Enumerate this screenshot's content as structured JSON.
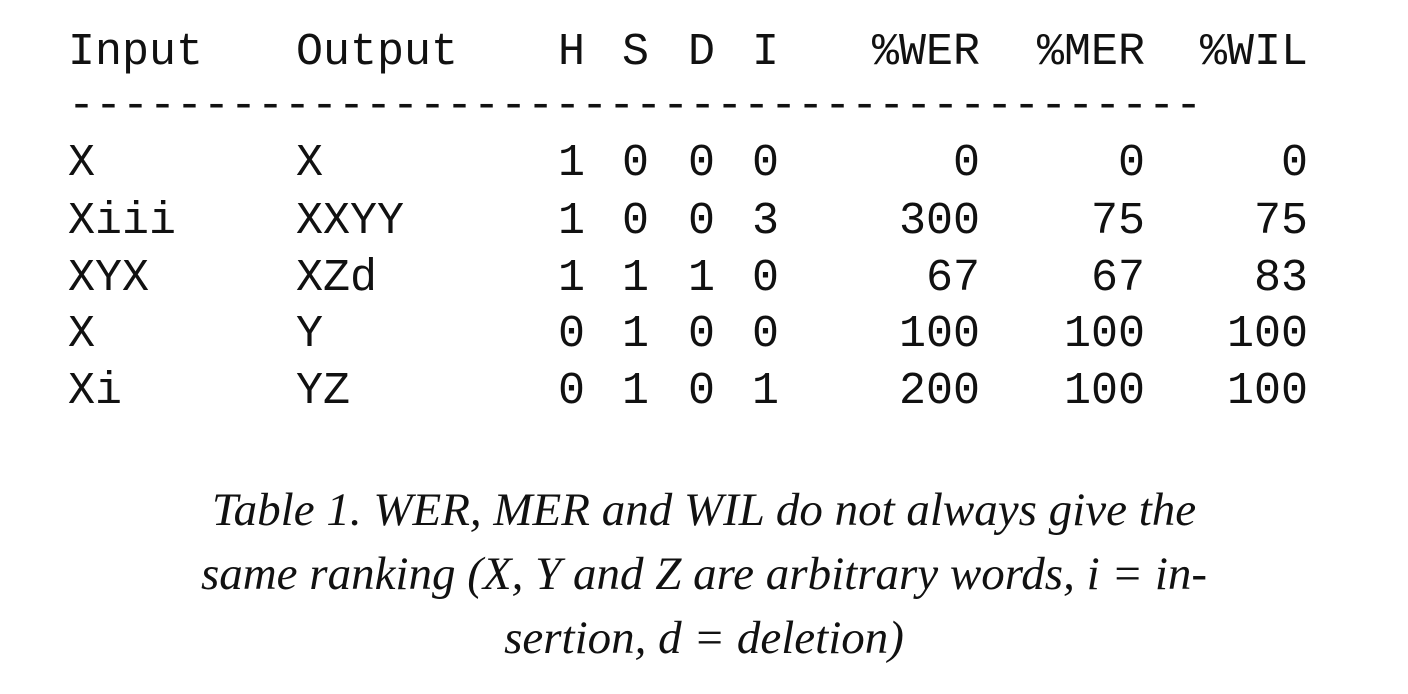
{
  "table": {
    "headers": {
      "input": "Input",
      "output": "Output",
      "h": "H",
      "s": "S",
      "d": "D",
      "i": "I",
      "wer": "%WER",
      "mer": "%MER",
      "wil": "%WIL"
    },
    "rule": "------------------------------------------",
    "rows": [
      {
        "input": "X",
        "output": "X",
        "h": "1",
        "s": "0",
        "d": "0",
        "i": "0",
        "wer": "0",
        "mer": "0",
        "wil": "0"
      },
      {
        "input": "Xiii",
        "output": "XXYY",
        "h": "1",
        "s": "0",
        "d": "0",
        "i": "3",
        "wer": "300",
        "mer": "75",
        "wil": "75"
      },
      {
        "input": "XYX",
        "output": "XZd",
        "h": "1",
        "s": "1",
        "d": "1",
        "i": "0",
        "wer": "67",
        "mer": "67",
        "wil": "83"
      },
      {
        "input": "X",
        "output": "Y",
        "h": "0",
        "s": "1",
        "d": "0",
        "i": "0",
        "wer": "100",
        "mer": "100",
        "wil": "100"
      },
      {
        "input": "Xi",
        "output": "YZ",
        "h": "0",
        "s": "1",
        "d": "0",
        "i": "1",
        "wer": "200",
        "mer": "100",
        "wil": "100"
      }
    ]
  },
  "caption": {
    "text": "Table 1. WER, MER and WIL do not always give the same ranking (X, Y and Z are arbitrary words, i = in-sertion, d = deletion)",
    "line1": "Table 1. WER, MER and WIL do not always give the",
    "line2": "same ranking (X, Y and Z are arbitrary words, i = in-",
    "line3": "sertion, d = deletion)"
  }
}
